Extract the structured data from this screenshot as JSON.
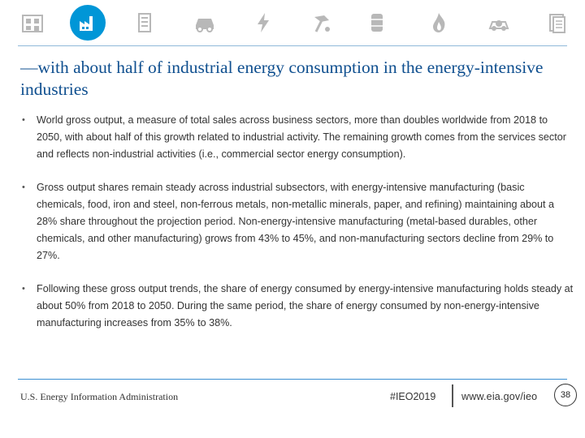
{
  "nav_icons": [
    {
      "name": "residential-icon"
    },
    {
      "name": "industrial-icon",
      "active": true
    },
    {
      "name": "commercial-icon"
    },
    {
      "name": "transportation-icon"
    },
    {
      "name": "electricity-icon"
    },
    {
      "name": "coal-icon"
    },
    {
      "name": "petroleum-icon"
    },
    {
      "name": "natural-gas-icon"
    },
    {
      "name": "renewables-icon"
    },
    {
      "name": "report-icon"
    }
  ],
  "colors": {
    "accent": "#0096d7",
    "icon_gray": "#b8b8b8",
    "title": "#0f4f8f"
  },
  "title": "—with about half of industrial energy consumption in the energy-intensive industries",
  "bullets": [
    "World gross output, a measure of total sales across business sectors, more than doubles worldwide from 2018 to 2050, with about half of this growth related to industrial activity. The remaining growth comes from the services sector and reflects non-industrial activities (i.e., commercial sector energy consumption).",
    "Gross output shares remain steady across industrial subsectors, with energy-intensive manufacturing (basic chemicals, food, iron and steel, non-ferrous metals, non-metallic minerals, paper, and refining) maintaining about a 28% share throughout the projection period. Non-energy-intensive manufacturing (metal-based durables, other chemicals, and other manufacturing) grows from 43% to 45%, and non-manufacturing sectors decline from 29% to 27%.",
    "Following these gross output trends, the share of energy consumed by energy-intensive manufacturing holds steady at about 50% from 2018 to 2050. During the same period, the share of energy consumed by non-energy-intensive manufacturing increases from 35% to 38%."
  ],
  "footer": {
    "org": "U.S. Energy Information Administration",
    "hashtag": "#IEO2019",
    "url": "www.eia.gov/ieo",
    "page": "38"
  }
}
